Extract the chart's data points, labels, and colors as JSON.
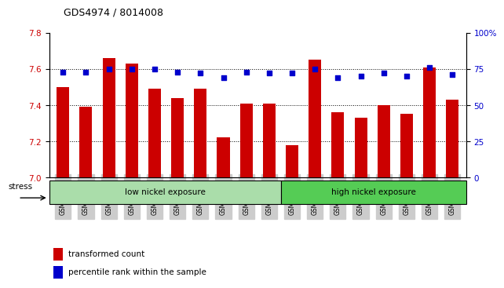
{
  "title": "GDS4974 / 8014008",
  "samples": [
    "GSM992693",
    "GSM992694",
    "GSM992695",
    "GSM992696",
    "GSM992697",
    "GSM992698",
    "GSM992699",
    "GSM992700",
    "GSM992701",
    "GSM992702",
    "GSM992703",
    "GSM992704",
    "GSM992705",
    "GSM992706",
    "GSM992707",
    "GSM992708",
    "GSM992709",
    "GSM992710"
  ],
  "bar_values": [
    7.5,
    7.39,
    7.66,
    7.63,
    7.49,
    7.44,
    7.49,
    7.22,
    7.41,
    7.41,
    7.18,
    7.65,
    7.36,
    7.33,
    7.4,
    7.35,
    7.61,
    7.43
  ],
  "dot_values": [
    73,
    73,
    75,
    75,
    75,
    73,
    72,
    69,
    73,
    72,
    72,
    75,
    69,
    70,
    72,
    70,
    76,
    71
  ],
  "bar_color": "#cc0000",
  "dot_color": "#0000cc",
  "ylim_left": [
    7.0,
    7.8
  ],
  "ylim_right": [
    0,
    100
  ],
  "yticks_left": [
    7.0,
    7.2,
    7.4,
    7.6,
    7.8
  ],
  "yticks_right": [
    0,
    25,
    50,
    75,
    100
  ],
  "group1_label": "low nickel exposure",
  "group2_label": "high nickel exposure",
  "group1_count": 10,
  "group2_count": 8,
  "stress_label": "stress",
  "legend1": "transformed count",
  "legend2": "percentile rank within the sample",
  "background_color": "#ffffff",
  "plot_bg": "#ffffff",
  "ylabel_left_color": "#cc0000",
  "ylabel_right_color": "#0000cc",
  "group1_color": "#aaddaa",
  "group2_color": "#55cc55",
  "tick_bg_color": "#cccccc"
}
